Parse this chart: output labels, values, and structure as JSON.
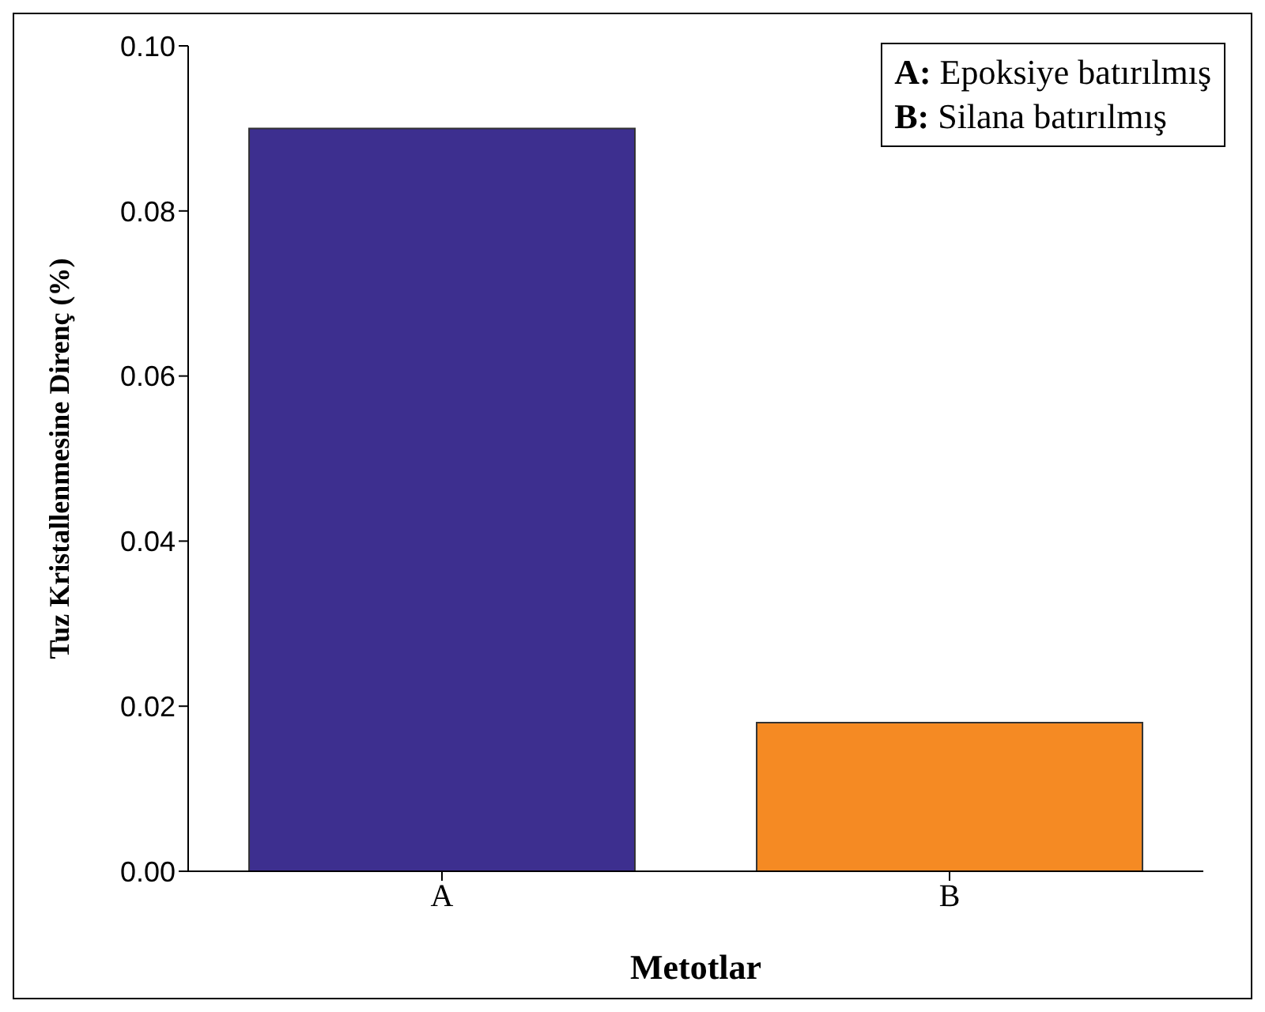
{
  "chart_data": {
    "type": "bar",
    "xlabel": "Metotlar",
    "ylabel": "Tuz Kristallenmesine Direnç (%)",
    "categories": [
      "A",
      "B"
    ],
    "values": [
      0.09,
      0.018
    ],
    "colors": [
      "#3d2f8f",
      "#f58a23"
    ],
    "ylim": [
      0,
      0.1
    ],
    "yticks": [
      {
        "value": 0,
        "label": "0.00"
      },
      {
        "value": 0.02,
        "label": "0.02"
      },
      {
        "value": 0.04,
        "label": "0.04"
      },
      {
        "value": 0.06,
        "label": "0.06"
      },
      {
        "value": 0.08,
        "label": "0.08"
      },
      {
        "value": 0.1,
        "label": "0.10"
      }
    ],
    "grid": false,
    "annotations": [
      "A: Epoksiye batırılmış",
      "B: Silana batırılmış"
    ]
  }
}
